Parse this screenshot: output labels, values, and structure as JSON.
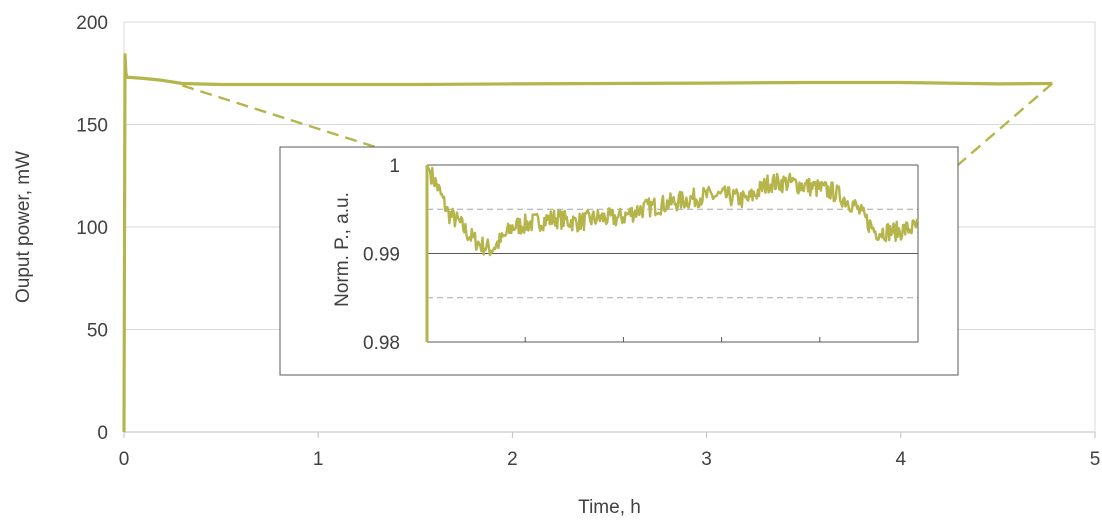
{
  "chart_data": [
    {
      "type": "line",
      "title": "",
      "xlabel": "Time, h",
      "ylabel": "Ouput power, mW",
      "xlim": [
        0,
        5
      ],
      "ylim": [
        0,
        200
      ],
      "x_ticks": [
        "0",
        "1",
        "2",
        "3",
        "4",
        "5"
      ],
      "y_ticks": [
        "0",
        "50",
        "100",
        "150",
        "200"
      ],
      "grid": "horizontal",
      "legend": "none",
      "series": [
        {
          "color": "#b5b54c",
          "x": [
            0,
            0.005,
            0.01,
            0.015,
            0.03,
            0.1,
            0.2,
            0.3,
            0.5,
            1.0,
            1.5,
            2.0,
            2.5,
            3.0,
            3.5,
            4.0,
            4.5,
            4.78
          ],
          "y": [
            0,
            184,
            175,
            173,
            173,
            172.5,
            171.5,
            170,
            169.5,
            169.5,
            169.5,
            169.8,
            170,
            170.2,
            170.5,
            170.5,
            169.8,
            170
          ]
        }
      ],
      "zoom_connectors": {
        "from_x": [
          0.3,
          4.78
        ],
        "color": "#b5b54c",
        "style": "dashed"
      }
    },
    {
      "type": "line",
      "title": "",
      "xlabel": "",
      "ylabel": "Norm. P., a.u.",
      "xlim": [
        1.7,
        4.0
      ],
      "ylim": [
        0.98,
        1.0
      ],
      "y_ticks": [
        "0.98",
        "0.99",
        "1"
      ],
      "grid": "horizontal",
      "legend": "none",
      "series": [
        {
          "color": "#b5b54c",
          "x": [
            1.7,
            1.75,
            1.8,
            1.85,
            1.9,
            1.95,
            2.0,
            2.05,
            2.1,
            2.2,
            2.3,
            2.4,
            2.5,
            2.6,
            2.7,
            2.8,
            2.9,
            3.0,
            3.1,
            3.2,
            3.3,
            3.4,
            3.5,
            3.6,
            3.7,
            3.8,
            3.9,
            4.0
          ],
          "y": [
            1.0,
            0.9975,
            0.9945,
            0.9935,
            0.992,
            0.991,
            0.9905,
            0.9915,
            0.993,
            0.9935,
            0.994,
            0.9935,
            0.994,
            0.994,
            0.995,
            0.9955,
            0.996,
            0.9965,
            0.9965,
            0.996,
            0.998,
            0.998,
            0.9975,
            0.997,
            0.9955,
            0.9925,
            0.9925,
            0.993
          ]
        }
      ]
    }
  ]
}
